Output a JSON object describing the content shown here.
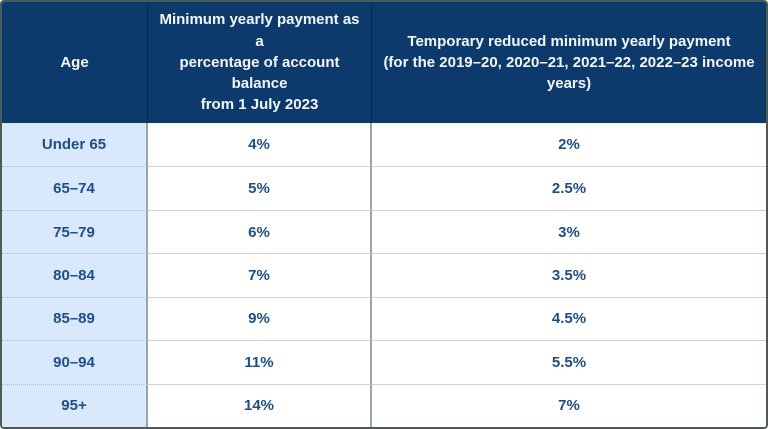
{
  "colors": {
    "header_background": "#0c3a6d",
    "header_text": "#f4f7fa",
    "age_column_background": "#d9e8fb",
    "body_text": "#1c4e8d",
    "outer_border": "#4e5c50",
    "column_separator": "#9aa2ac",
    "row_separator": "#d2d2d2"
  },
  "table": {
    "headers": {
      "age": "Age",
      "minimum": "Minimum yearly payment as a\npercentage of account balance\nfrom 1 July 2023",
      "reduced": "Temporary reduced minimum yearly payment\n(for the 2019–20, 2020–21, 2021–22, 2022–23 income years)"
    },
    "rows": [
      {
        "age": "Under 65",
        "minimum": "4%",
        "reduced": "2%"
      },
      {
        "age": "65–74",
        "minimum": "5%",
        "reduced": "2.5%"
      },
      {
        "age": "75–79",
        "minimum": "6%",
        "reduced": "3%"
      },
      {
        "age": "80–84",
        "minimum": "7%",
        "reduced": "3.5%"
      },
      {
        "age": "85–89",
        "minimum": "9%",
        "reduced": "4.5%"
      },
      {
        "age": "90–94",
        "minimum": "11%",
        "reduced": "5.5%"
      },
      {
        "age": "95+",
        "minimum": "14%",
        "reduced": "7%"
      }
    ]
  },
  "chart_data": {
    "type": "table",
    "title": "",
    "columns": [
      "Age",
      "Minimum yearly payment as a percentage of account balance from 1 July 2023",
      "Temporary reduced minimum yearly payment (for the 2019–20, 2020–21, 2021–22, 2022–23 income years)"
    ],
    "rows": [
      [
        "Under 65",
        "4%",
        "2%"
      ],
      [
        "65–74",
        "5%",
        "2.5%"
      ],
      [
        "75–79",
        "6%",
        "3%"
      ],
      [
        "80–84",
        "7%",
        "3.5%"
      ],
      [
        "85–89",
        "9%",
        "4.5%"
      ],
      [
        "90–94",
        "11%",
        "5.5%"
      ],
      [
        "95+",
        "14%",
        "7%"
      ]
    ]
  }
}
